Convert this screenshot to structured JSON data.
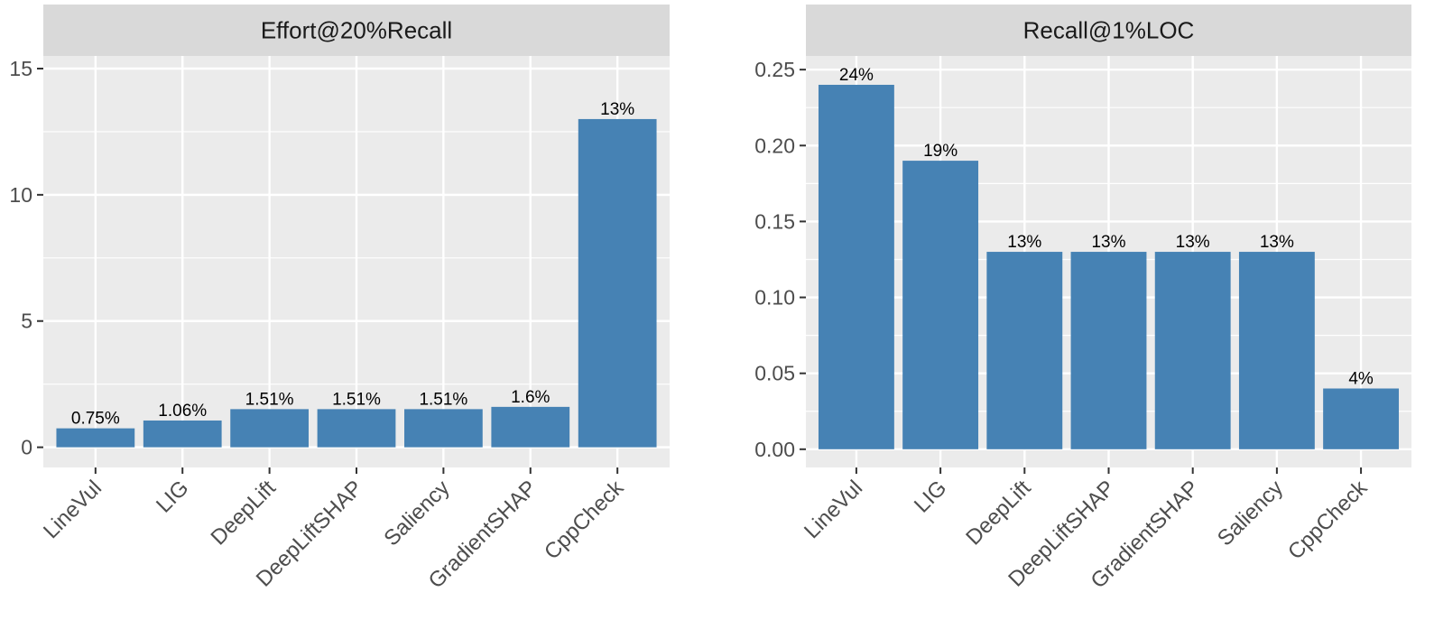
{
  "colors": {
    "bar": "#4682b4",
    "panel_background": "#ebebeb",
    "strip_background": "#d9d9d9",
    "grid_major": "#ffffff",
    "axis_tick": "#333333"
  },
  "chart_data": [
    {
      "type": "bar",
      "title": "Effort@20%Recall",
      "categories": [
        "LineVul",
        "LIG",
        "DeepLift",
        "DeepLiftSHAP",
        "Saliency",
        "GradientSHAP",
        "CppCheck"
      ],
      "values": [
        0.75,
        1.06,
        1.51,
        1.51,
        1.51,
        1.6,
        13
      ],
      "data_labels": [
        "0.75%",
        "1.06%",
        "1.51%",
        "1.51%",
        "1.51%",
        "1.6%",
        "13%"
      ],
      "ylim": [
        -0.8,
        15.5
      ],
      "yticks": [
        0,
        5,
        10,
        15
      ],
      "ytick_labels": [
        "0",
        "5",
        "10",
        "15"
      ],
      "grid": true
    },
    {
      "type": "bar",
      "title": "Recall@1%LOC",
      "categories": [
        "LineVul",
        "LIG",
        "DeepLift",
        "DeepLiftSHAP",
        "GradientSHAP",
        "Saliency",
        "CppCheck"
      ],
      "values": [
        0.24,
        0.19,
        0.13,
        0.13,
        0.13,
        0.13,
        0.04
      ],
      "data_labels": [
        "24%",
        "19%",
        "13%",
        "13%",
        "13%",
        "13%",
        "4%"
      ],
      "ylim": [
        -0.012,
        0.259
      ],
      "yticks": [
        0,
        0.05,
        0.1,
        0.15,
        0.2,
        0.25
      ],
      "ytick_labels": [
        "0.00",
        "0.05",
        "0.10",
        "0.15",
        "0.20",
        "0.25"
      ],
      "grid": true
    }
  ]
}
